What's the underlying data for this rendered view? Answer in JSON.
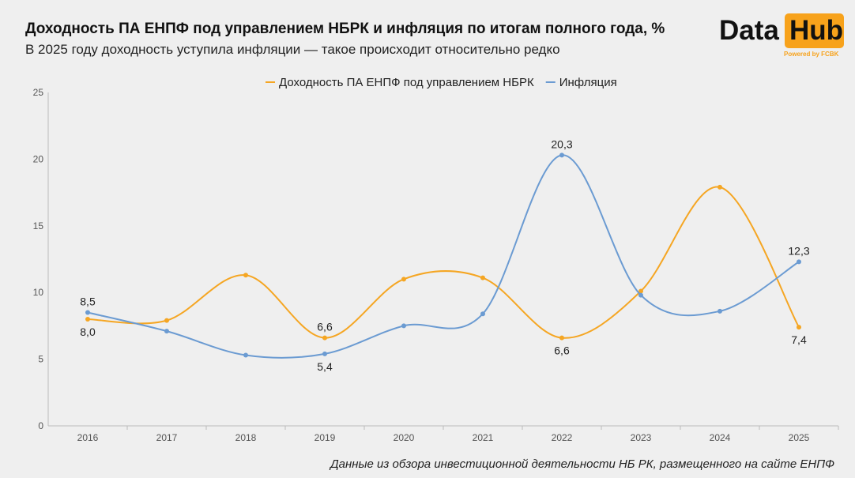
{
  "header": {
    "title": "Доходность ПА ЕНПФ под управлением НБРК и инфляция по итогам полного года, %",
    "subtitle": "В 2025 году доходность уступила инфляции — такое происходит относительно редко"
  },
  "logo": {
    "text_left": "Data",
    "text_right": "Hub",
    "tagline": "Powered by FCBK",
    "accent": "#f7a21b"
  },
  "footer": {
    "source": "Данные из обзора инвестиционной деятельности НБ РК, размещенного на сайте ЕНПФ"
  },
  "chart_data": {
    "type": "line",
    "smooth": true,
    "x": [
      "2016",
      "2017",
      "2018",
      "2019",
      "2020",
      "2021",
      "2022",
      "2023",
      "2024",
      "2025"
    ],
    "ylim": [
      0,
      25
    ],
    "yticks": [
      "0",
      "5",
      "10",
      "15",
      "20",
      "25"
    ],
    "grid": false,
    "legend": "top-center",
    "series": [
      {
        "name": "Доходность ПА ЕНПФ под управлением НБРК",
        "color": "#f5a623",
        "values": [
          8.0,
          7.9,
          11.3,
          6.6,
          11.0,
          11.1,
          6.6,
          10.1,
          17.9,
          7.4
        ],
        "labels": [
          {
            "i": 0,
            "text": "8,0",
            "pos": "below"
          },
          {
            "i": 3,
            "text": "6,6",
            "pos": "above"
          },
          {
            "i": 6,
            "text": "6,6",
            "pos": "below"
          },
          {
            "i": 9,
            "text": "7,4",
            "pos": "below"
          }
        ]
      },
      {
        "name": "Инфляция",
        "color": "#6b9bd2",
        "values": [
          8.5,
          7.1,
          5.3,
          5.4,
          7.5,
          8.4,
          20.3,
          9.8,
          8.6,
          12.3
        ],
        "labels": [
          {
            "i": 0,
            "text": "8,5",
            "pos": "above"
          },
          {
            "i": 3,
            "text": "5,4",
            "pos": "below"
          },
          {
            "i": 6,
            "text": "20,3",
            "pos": "above"
          },
          {
            "i": 9,
            "text": "12,3",
            "pos": "above"
          }
        ]
      }
    ]
  }
}
